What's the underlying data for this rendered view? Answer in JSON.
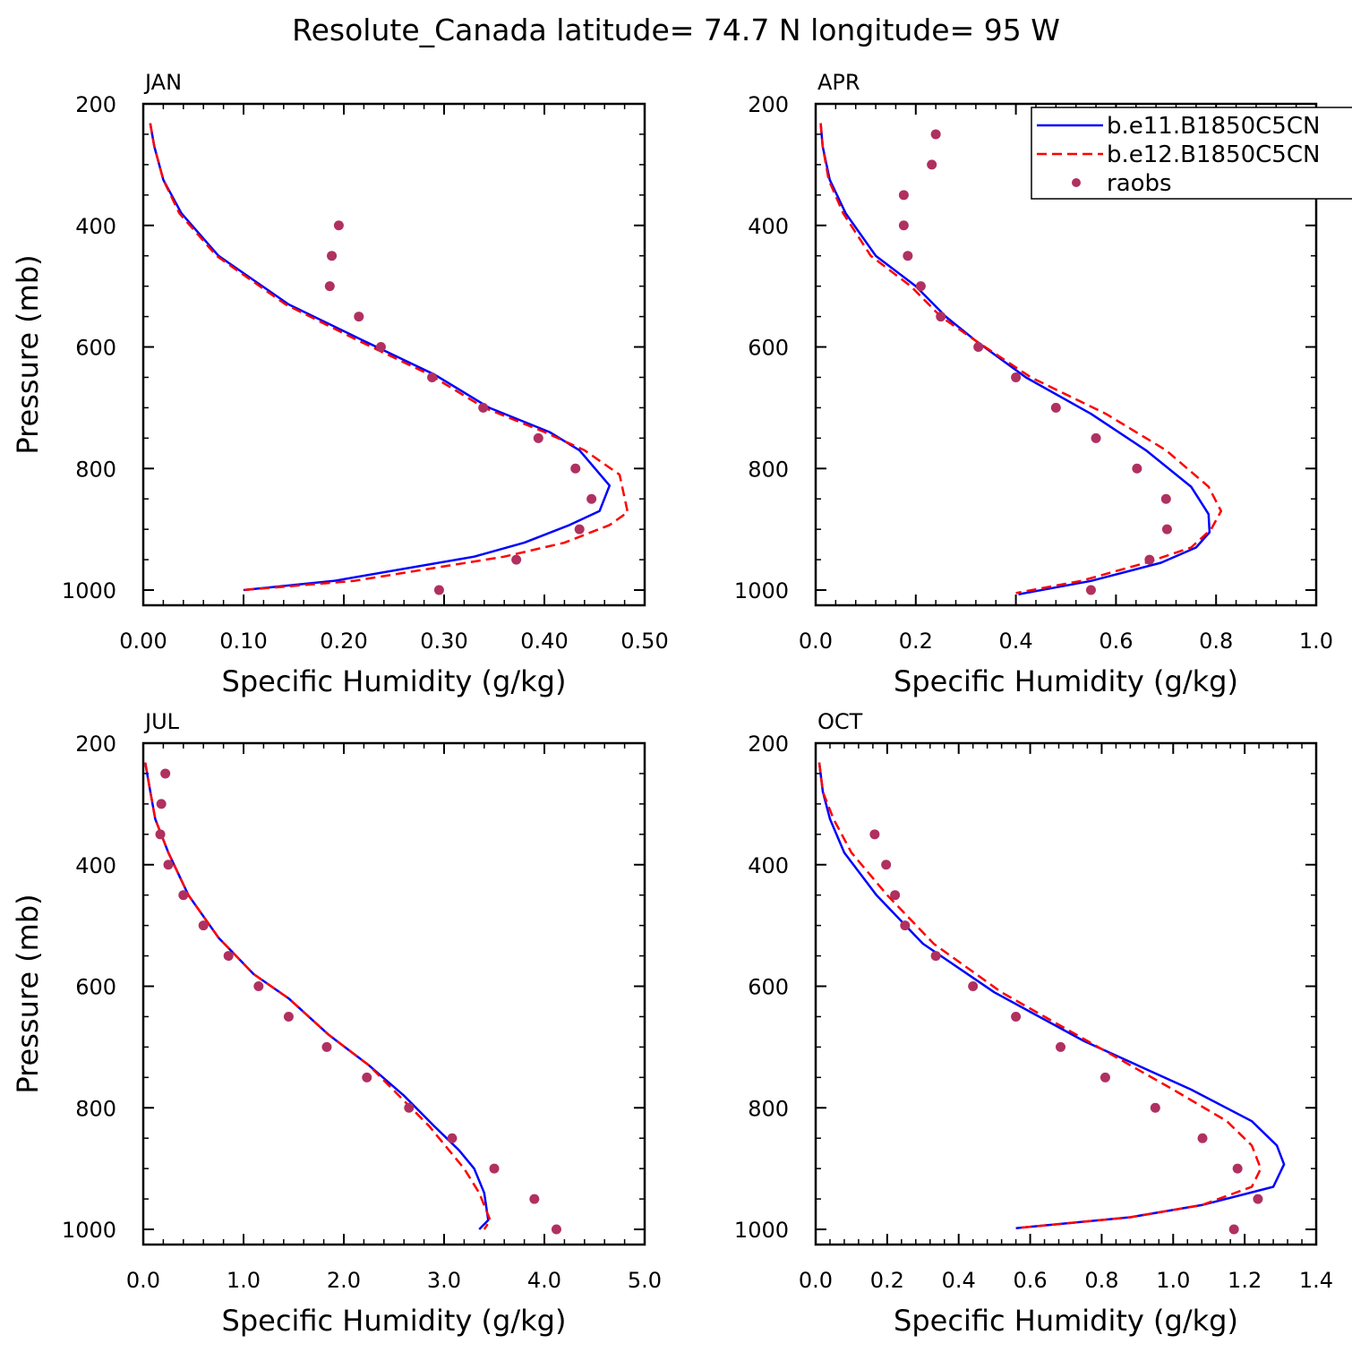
{
  "title": "Resolute_Canada  latitude= 74.7 N longitude= 95 W",
  "legend": {
    "entries": [
      {
        "label": "b.e11.B1850C5CN",
        "color": "#0000ff",
        "style": "solid"
      },
      {
        "label": "b.e12.B1850C5CN",
        "color": "#ff0000",
        "style": "dashed"
      },
      {
        "label": "raobs",
        "color": "#b03060",
        "style": "dots"
      }
    ]
  },
  "chart_data": [
    {
      "type": "line",
      "panel": "JAN",
      "xlabel": "Specific Humidity (g/kg)",
      "ylabel": "Pressure (mb)",
      "xlim": [
        0,
        0.5
      ],
      "ylim": [
        200,
        1025
      ],
      "xticks": [
        0,
        0.1,
        0.2,
        0.3,
        0.4,
        0.5
      ],
      "xtick_labels": [
        "0.00",
        "0.10",
        "0.20",
        "0.30",
        "0.40",
        "0.50"
      ],
      "yticks": [
        200,
        400,
        600,
        800,
        1000
      ],
      "ytick_labels": [
        "200",
        "400",
        "600",
        "800",
        "1000"
      ],
      "series": [
        {
          "name": "b.e11.B1850C5CN",
          "color": "#0000ff",
          "style": "solid",
          "x": [
            0.007,
            0.011,
            0.02,
            0.038,
            0.075,
            0.145,
            0.22,
            0.29,
            0.345,
            0.405,
            0.435,
            0.465,
            0.455,
            0.425,
            0.38,
            0.33,
            0.19,
            0.1
          ],
          "y": [
            232,
            270,
            325,
            380,
            450,
            530,
            590,
            645,
            700,
            740,
            770,
            828,
            870,
            893,
            922,
            945,
            985,
            1000
          ]
        },
        {
          "name": "b.e12.B1850C5CN",
          "color": "#ff0000",
          "style": "dashed",
          "x": [
            0.007,
            0.011,
            0.02,
            0.036,
            0.073,
            0.142,
            0.215,
            0.285,
            0.34,
            0.4,
            0.44,
            0.475,
            0.483,
            0.465,
            0.42,
            0.36,
            0.21,
            0.1
          ],
          "y": [
            232,
            270,
            325,
            380,
            450,
            530,
            590,
            645,
            700,
            740,
            770,
            810,
            872,
            893,
            922,
            945,
            985,
            1000
          ]
        }
      ],
      "points": {
        "name": "raobs",
        "x": [
          0.195,
          0.188,
          0.186,
          0.215,
          0.237,
          0.288,
          0.339,
          0.394,
          0.431,
          0.447,
          0.435,
          0.372,
          0.295
        ],
        "y": [
          400,
          450,
          500,
          550,
          600,
          650,
          700,
          750,
          800,
          850,
          900,
          950,
          1000
        ]
      }
    },
    {
      "type": "line",
      "panel": "APR",
      "xlabel": "Specific Humidity (g/kg)",
      "ylabel": "",
      "xlim": [
        0,
        1.0
      ],
      "ylim": [
        200,
        1025
      ],
      "xticks": [
        0,
        0.2,
        0.4,
        0.6,
        0.8,
        1.0
      ],
      "xtick_labels": [
        "0.0",
        "0.2",
        "0.4",
        "0.6",
        "0.8",
        "1.0"
      ],
      "yticks": [
        200,
        400,
        600,
        800,
        1000
      ],
      "ytick_labels": [
        "200",
        "400",
        "600",
        "800",
        "1000"
      ],
      "series": [
        {
          "name": "b.e11.B1850C5CN",
          "color": "#0000ff",
          "style": "solid",
          "x": [
            0.01,
            0.014,
            0.028,
            0.06,
            0.12,
            0.2,
            0.26,
            0.32,
            0.42,
            0.55,
            0.66,
            0.75,
            0.785,
            0.787,
            0.76,
            0.69,
            0.55,
            0.405
          ],
          "y": [
            232,
            270,
            325,
            380,
            450,
            500,
            550,
            590,
            650,
            710,
            770,
            830,
            875,
            905,
            930,
            955,
            985,
            1007
          ]
        },
        {
          "name": "b.e12.B1850C5CN",
          "color": "#ff0000",
          "style": "dashed",
          "x": [
            0.01,
            0.014,
            0.026,
            0.055,
            0.11,
            0.19,
            0.25,
            0.32,
            0.43,
            0.58,
            0.7,
            0.785,
            0.81,
            0.79,
            0.75,
            0.66,
            0.53,
            0.4
          ],
          "y": [
            232,
            270,
            325,
            380,
            450,
            500,
            550,
            590,
            650,
            710,
            770,
            830,
            870,
            900,
            930,
            955,
            985,
            1005
          ]
        }
      ],
      "points": {
        "name": "raobs",
        "x": [
          0.24,
          0.232,
          0.176,
          0.176,
          0.184,
          0.21,
          0.25,
          0.325,
          0.4,
          0.48,
          0.56,
          0.642,
          0.7,
          0.702,
          0.667,
          0.55
        ],
        "y": [
          250,
          300,
          350,
          400,
          450,
          500,
          550,
          600,
          650,
          700,
          750,
          800,
          850,
          900,
          950,
          1000
        ]
      }
    },
    {
      "type": "line",
      "panel": "JUL",
      "xlabel": "Specific Humidity (g/kg)",
      "ylabel": "Pressure (mb)",
      "xlim": [
        0,
        5.0
      ],
      "ylim": [
        200,
        1025
      ],
      "xticks": [
        0,
        1,
        2,
        3,
        4,
        5
      ],
      "xtick_labels": [
        "0.0",
        "1.0",
        "2.0",
        "3.0",
        "4.0",
        "5.0"
      ],
      "yticks": [
        200,
        400,
        600,
        800,
        1000
      ],
      "ytick_labels": [
        "200",
        "400",
        "600",
        "800",
        "1000"
      ],
      "series": [
        {
          "name": "b.e11.B1850C5CN",
          "color": "#0000ff",
          "style": "solid",
          "x": [
            0.02,
            0.06,
            0.12,
            0.25,
            0.45,
            0.75,
            1.1,
            1.45,
            1.85,
            2.25,
            2.6,
            2.9,
            3.15,
            3.3,
            3.4,
            3.44,
            3.35
          ],
          "y": [
            232,
            270,
            325,
            380,
            450,
            520,
            580,
            620,
            680,
            730,
            780,
            830,
            870,
            900,
            940,
            985,
            1000
          ]
        },
        {
          "name": "b.e12.B1850C5CN",
          "color": "#ff0000",
          "style": "dashed",
          "x": [
            0.02,
            0.06,
            0.12,
            0.25,
            0.45,
            0.75,
            1.1,
            1.45,
            1.85,
            2.25,
            2.55,
            2.85,
            3.05,
            3.2,
            3.35,
            3.46,
            3.4
          ],
          "y": [
            232,
            270,
            325,
            380,
            450,
            520,
            580,
            620,
            680,
            730,
            780,
            830,
            870,
            900,
            940,
            985,
            1000
          ]
        }
      ],
      "points": {
        "name": "raobs",
        "x": [
          0.22,
          0.18,
          0.17,
          0.25,
          0.4,
          0.6,
          0.85,
          1.15,
          1.45,
          1.83,
          2.23,
          2.65,
          3.08,
          3.5,
          3.9,
          4.12
        ],
        "y": [
          250,
          300,
          350,
          400,
          450,
          500,
          550,
          600,
          650,
          700,
          750,
          800,
          850,
          900,
          950,
          1000
        ]
      }
    },
    {
      "type": "line",
      "panel": "OCT",
      "xlabel": "Specific Humidity (g/kg)",
      "ylabel": "",
      "xlim": [
        0,
        1.4
      ],
      "ylim": [
        200,
        1025
      ],
      "xticks": [
        0,
        0.2,
        0.4,
        0.6,
        0.8,
        1.0,
        1.2,
        1.4
      ],
      "xtick_labels": [
        "0.0",
        "0.2",
        "0.4",
        "0.6",
        "0.8",
        "1.0",
        "1.2",
        "1.4"
      ],
      "yticks": [
        200,
        400,
        600,
        800,
        1000
      ],
      "ytick_labels": [
        "200",
        "400",
        "600",
        "800",
        "1000"
      ],
      "series": [
        {
          "name": "b.e11.B1850C5CN",
          "color": "#0000ff",
          "style": "solid",
          "x": [
            0.01,
            0.02,
            0.04,
            0.08,
            0.17,
            0.3,
            0.5,
            0.75,
            1.05,
            1.22,
            1.29,
            1.31,
            1.28,
            1.08,
            0.88,
            0.56
          ],
          "y": [
            232,
            280,
            325,
            380,
            450,
            530,
            610,
            690,
            770,
            822,
            862,
            893,
            930,
            960,
            980,
            998
          ]
        },
        {
          "name": "b.e12.B1850C5CN",
          "color": "#ff0000",
          "style": "dashed",
          "x": [
            0.01,
            0.02,
            0.05,
            0.1,
            0.2,
            0.33,
            0.52,
            0.76,
            1.0,
            1.15,
            1.22,
            1.245,
            1.22,
            1.08,
            0.88,
            0.56
          ],
          "y": [
            232,
            280,
            325,
            380,
            450,
            530,
            610,
            690,
            770,
            822,
            862,
            900,
            930,
            960,
            980,
            998
          ]
        }
      ],
      "points": {
        "name": "raobs",
        "x": [
          0.165,
          0.197,
          0.222,
          0.25,
          0.336,
          0.44,
          0.56,
          0.685,
          0.81,
          0.95,
          1.082,
          1.18,
          1.237,
          1.17
        ],
        "y": [
          350,
          400,
          450,
          500,
          550,
          600,
          650,
          700,
          750,
          800,
          850,
          900,
          950,
          1000
        ]
      }
    }
  ]
}
